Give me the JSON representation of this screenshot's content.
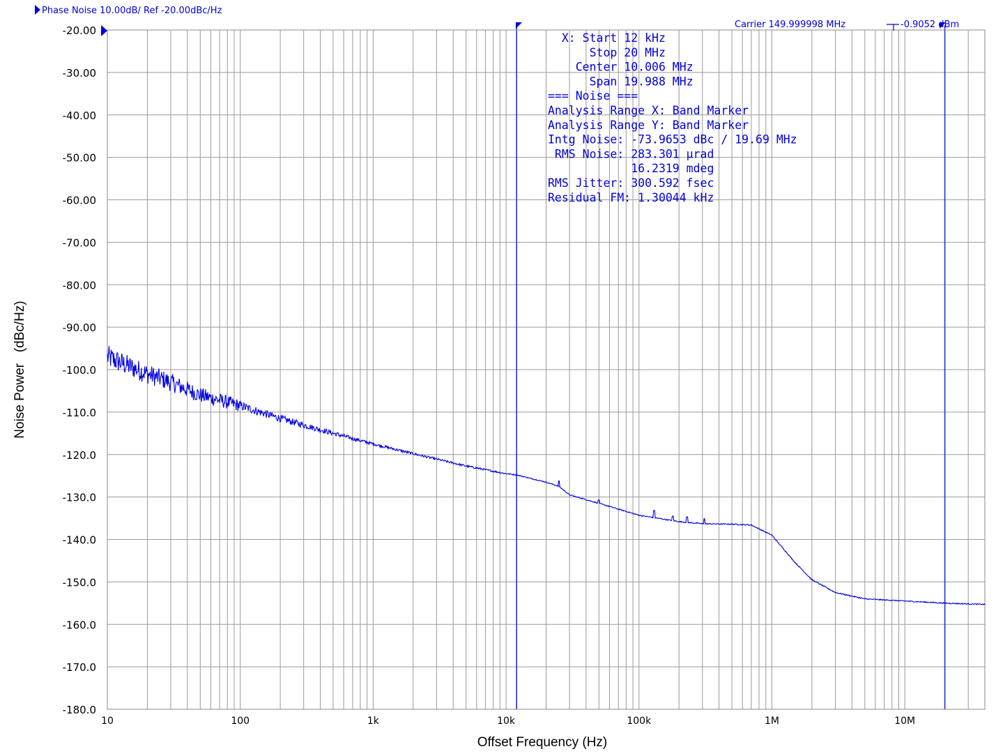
{
  "header": {
    "title": "Phase Noise 10.00dB/ Ref -20.00dBc/Hz",
    "carrier": "Carrier 149.999998 MHz",
    "carrier_power": "-0.9052 dBm"
  },
  "colors": {
    "trace": "#0000dd",
    "text": "#0000dd",
    "grid": "#999999",
    "frame": "#888888",
    "marker": "#2233cc",
    "background": "#ffffff"
  },
  "annotation_lines": [
    "  X: Start 12 kHz",
    "      Stop 20 MHz",
    "    Center 10.006 MHz",
    "      Span 19.988 MHz",
    "=== Noise ===",
    "Analysis Range X: Band Marker",
    "Analysis Range Y: Band Marker",
    "Intg Noise: -73.9653 dBc / 19.69 MHz",
    " RMS Noise: 283.301 µrad",
    "            16.2319 mdeg",
    "RMS Jitter: 300.592 fsec",
    "Residual FM: 1.30044 kHz"
  ],
  "chart_data": {
    "type": "line",
    "title": "Phase Noise 10.00dB/ Ref -20.00dBc/Hz",
    "xlabel": "Offset Frequency (Hz)",
    "ylabel": "Noise Power   (dBc/Hz)",
    "x_scale": "log",
    "xlim": [
      10,
      40000000
    ],
    "ylim": [
      -180,
      -20
    ],
    "x_ticks": [
      10,
      100,
      1000,
      10000,
      100000,
      1000000,
      10000000
    ],
    "x_tick_labels": [
      "10",
      "100",
      "1k",
      "10k",
      "100k",
      "1M",
      "10M"
    ],
    "y_ticks": [
      -20,
      -30,
      -40,
      -50,
      -60,
      -70,
      -80,
      -90,
      -100,
      -110,
      -120,
      -130,
      -140,
      -150,
      -160,
      -170,
      -180
    ],
    "y_tick_labels": [
      "-20.00",
      "-30.00",
      "-40.00",
      "-50.00",
      "-60.00",
      "-70.00",
      "-80.00",
      "-90.00",
      "-100.0",
      "-110.0",
      "-120.0",
      "-130.0",
      "-140.0",
      "-150.0",
      "-160.0",
      "-170.0",
      "-180.0"
    ],
    "grid": true,
    "band_markers_hz": [
      12000,
      20000000
    ],
    "series": [
      {
        "x": [
          10,
          20,
          30,
          50,
          100,
          200,
          500,
          1000,
          2000,
          5000,
          10000,
          12000,
          20000,
          25000,
          30000,
          50000,
          100000,
          200000,
          300000,
          500000,
          700000,
          1000000,
          1500000,
          2000000,
          3000000,
          5000000,
          10000000,
          20000000,
          40000000
        ],
        "y": [
          -97,
          -101,
          -103,
          -106,
          -108.5,
          -111.5,
          -115,
          -117.5,
          -119.8,
          -122.7,
          -124.5,
          -124.8,
          -126.5,
          -127.5,
          -129.5,
          -131.5,
          -134.3,
          -135.8,
          -136.3,
          -136.4,
          -136.6,
          -139,
          -145.5,
          -149.5,
          -152.5,
          -154,
          -154.5,
          -155,
          -155.3
        ]
      }
    ],
    "spurs": [
      {
        "x": 25000,
        "y": -126.2
      },
      {
        "x": 50000,
        "y": -130.7
      },
      {
        "x": 130000,
        "y": -133.2
      },
      {
        "x": 180000,
        "y": -134.5
      },
      {
        "x": 230000,
        "y": -134.7
      },
      {
        "x": 310000,
        "y": -135.1
      }
    ]
  }
}
